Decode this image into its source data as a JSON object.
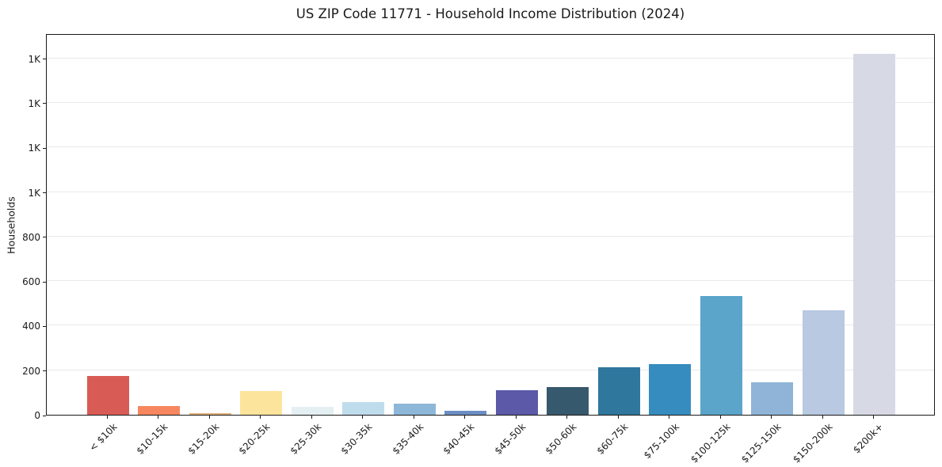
{
  "chart_data": {
    "type": "bar",
    "title": "US ZIP Code 11771 - Household Income Distribution (2024)",
    "xlabel": "",
    "ylabel": "Households",
    "ylim": [
      0,
      1712
    ],
    "grid": true,
    "legend": "none",
    "categories": [
      "< $10k",
      "$10-15k",
      "$15-20k",
      "$20-25k",
      "$25-30k",
      "$30-35k",
      "$35-40k",
      "$40-45k",
      "$45-50k",
      "$50-60k",
      "$60-75k",
      "$75-100k",
      "$100-125k",
      "$125-150k",
      "$150-200k",
      "$200k+"
    ],
    "values": [
      173,
      40,
      7,
      108,
      35,
      57,
      50,
      17,
      112,
      123,
      215,
      229,
      533,
      147,
      468,
      1619
    ],
    "bar_colors": [
      "#d95b55",
      "#f6875f",
      "#ddb077",
      "#fde49c",
      "#e4eff2",
      "#bfdcec",
      "#8db7d9",
      "#6b8dc3",
      "#5c59a8",
      "#37596d",
      "#2f779c",
      "#368cbf",
      "#5ba4ca",
      "#8fb4d8",
      "#b8c9e1",
      "#d7d9e5"
    ],
    "y_ticks": [
      {
        "value": 0,
        "label": "0"
      },
      {
        "value": 200,
        "label": "200"
      },
      {
        "value": 400,
        "label": "400"
      },
      {
        "value": 600,
        "label": "600"
      },
      {
        "value": 800,
        "label": "800"
      },
      {
        "value": 1000,
        "label": "1K"
      },
      {
        "value": 1200,
        "label": "1K"
      },
      {
        "value": 1400,
        "label": "1K"
      },
      {
        "value": 1600,
        "label": "1K"
      }
    ],
    "axis_color": "#1a1a1a",
    "grid_color": "#e9e9e9",
    "background_color": "#ffffff"
  }
}
